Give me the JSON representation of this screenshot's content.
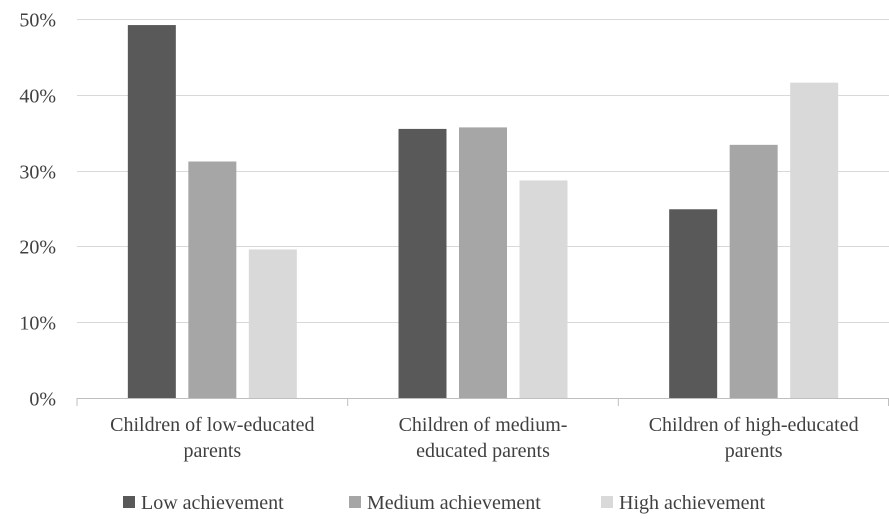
{
  "chart_data": {
    "type": "bar",
    "categories": [
      [
        "Children of low-educated",
        "parents"
      ],
      [
        "Children of medium-",
        "educated parents"
      ],
      [
        "Children of high-educated",
        "parents"
      ]
    ],
    "series": [
      {
        "name": "Low achievement",
        "color": "#595959",
        "values": [
          49.2,
          35.5,
          24.9
        ]
      },
      {
        "name": "Medium achievement",
        "color": "#a6a6a6",
        "values": [
          31.2,
          35.7,
          33.4
        ]
      },
      {
        "name": "High achievement",
        "color": "#d9d9d9",
        "values": [
          19.6,
          28.7,
          41.6
        ]
      }
    ],
    "ylim": [
      0,
      50
    ],
    "yticks": [
      0,
      10,
      20,
      30,
      40,
      50
    ],
    "ytick_labels": [
      "0%",
      "10%",
      "20%",
      "30%",
      "40%",
      "50%"
    ],
    "grid": true,
    "legend_position": "bottom",
    "grid_color": "#d9d9d9",
    "axis_color": "#bfbfbf"
  }
}
